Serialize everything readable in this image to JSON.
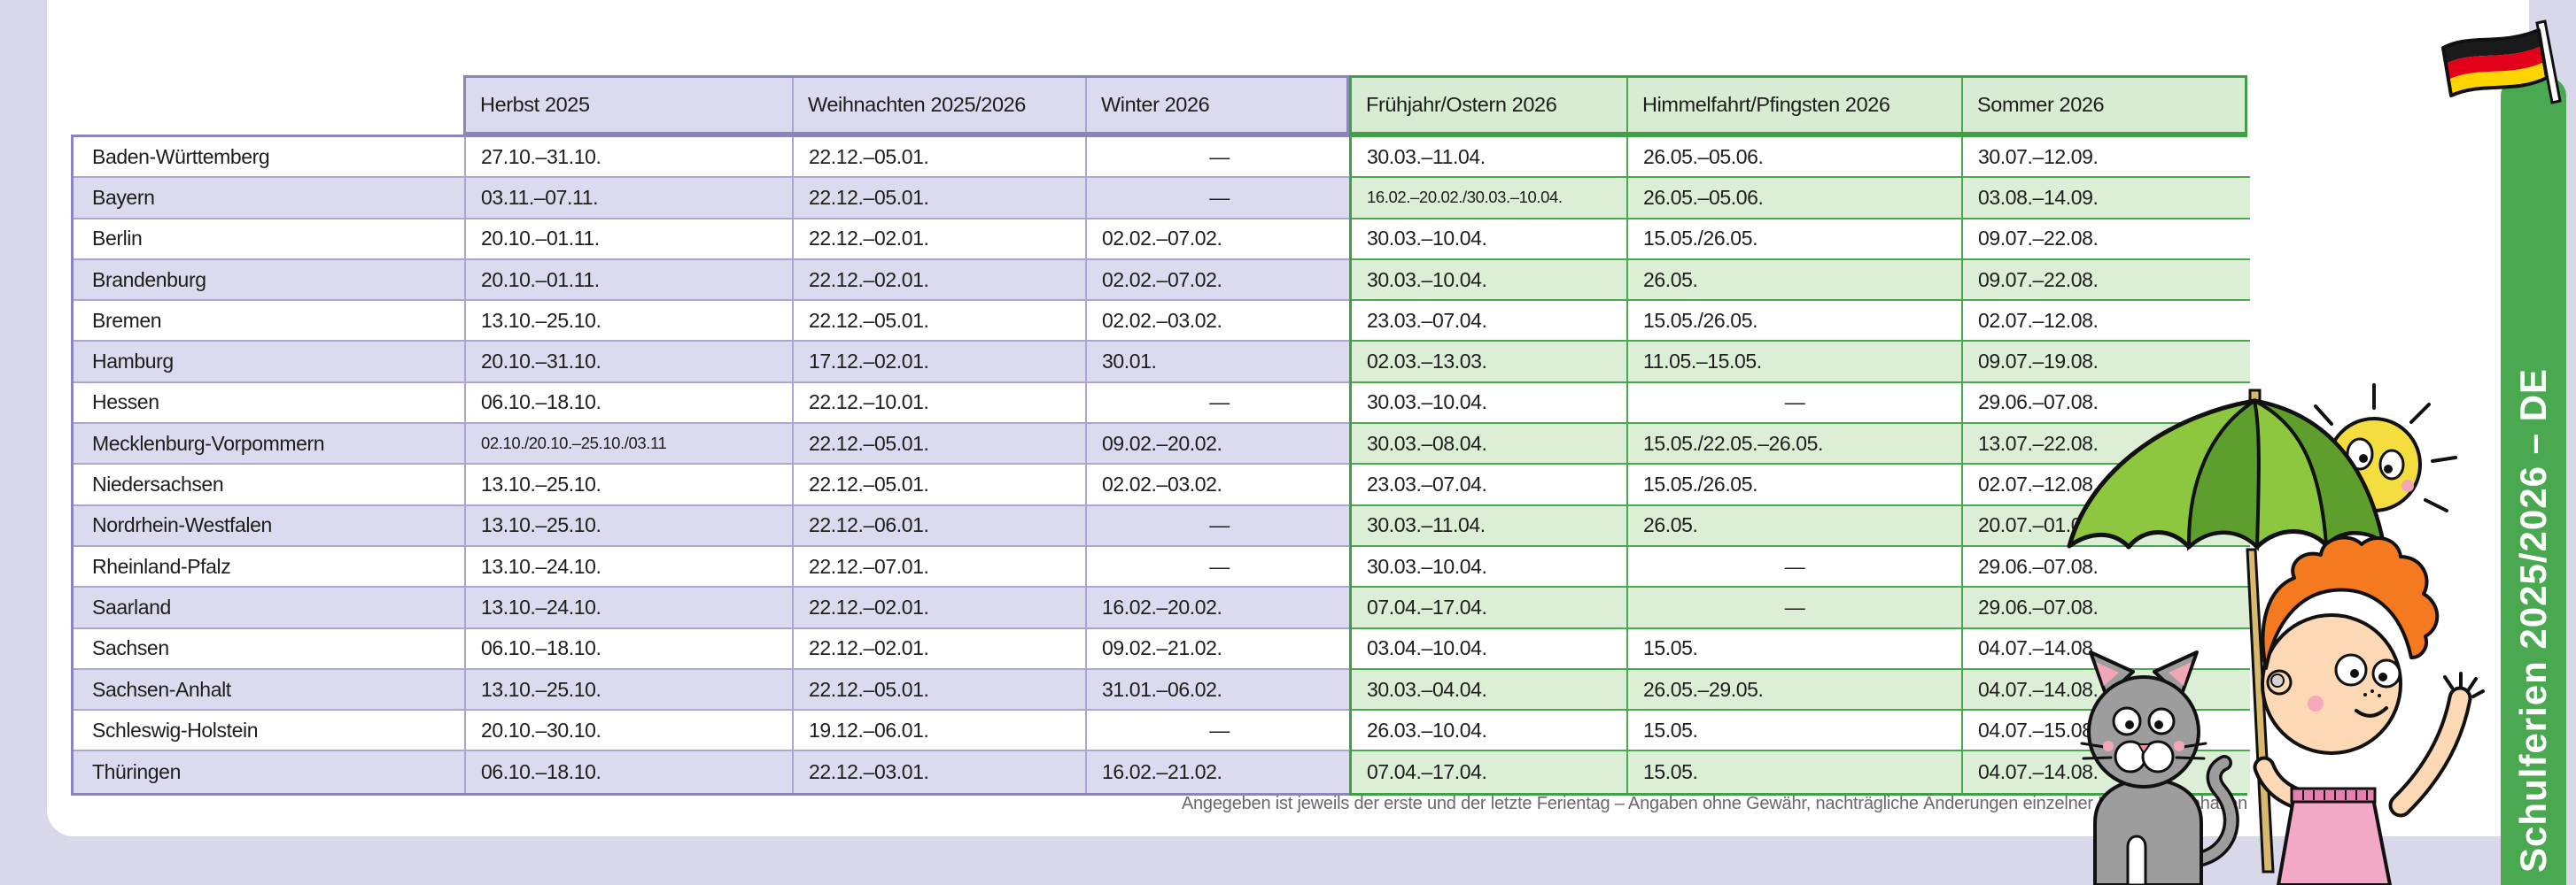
{
  "sidebar": {
    "tab_label": "Schulferien 2025/2026 – DE"
  },
  "table": {
    "columns": [
      "Herbst 2025",
      "Weihnachten 2025/2026",
      "Winter 2026",
      "Frühjahr/Ostern 2026",
      "Himmelfahrt/Pfingsten 2026",
      "Sommer 2026"
    ],
    "rows": [
      {
        "state": "Baden-Württemberg",
        "values": [
          "27.10.–31.10.",
          "22.12.–05.01.",
          "—",
          "30.03.–11.04.",
          "26.05.–05.06.",
          "30.07.–12.09."
        ]
      },
      {
        "state": "Bayern",
        "values": [
          "03.11.–07.11.",
          "22.12.–05.01.",
          "—",
          "16.02.–20.02./30.03.–10.04.",
          "26.05.–05.06.",
          "03.08.–14.09."
        ]
      },
      {
        "state": "Berlin",
        "values": [
          "20.10.–01.11.",
          "22.12.–02.01.",
          "02.02.–07.02.",
          "30.03.–10.04.",
          "15.05./26.05.",
          "09.07.–22.08."
        ]
      },
      {
        "state": "Brandenburg",
        "values": [
          "20.10.–01.11.",
          "22.12.–02.01.",
          "02.02.–07.02.",
          "30.03.–10.04.",
          "26.05.",
          "09.07.–22.08."
        ]
      },
      {
        "state": "Bremen",
        "values": [
          "13.10.–25.10.",
          "22.12.–05.01.",
          "02.02.–03.02.",
          "23.03.–07.04.",
          "15.05./26.05.",
          "02.07.–12.08."
        ]
      },
      {
        "state": "Hamburg",
        "values": [
          "20.10.–31.10.",
          "17.12.–02.01.",
          "30.01.",
          "02.03.–13.03.",
          "11.05.–15.05.",
          "09.07.–19.08."
        ]
      },
      {
        "state": "Hessen",
        "values": [
          "06.10.–18.10.",
          "22.12.–10.01.",
          "—",
          "30.03.–10.04.",
          "—",
          "29.06.–07.08."
        ]
      },
      {
        "state": "Mecklenburg-Vorpommern",
        "values": [
          "02.10./20.10.–25.10./03.11",
          "22.12.–05.01.",
          "09.02.–20.02.",
          "30.03.–08.04.",
          "15.05./22.05.–26.05.",
          "13.07.–22.08."
        ]
      },
      {
        "state": "Niedersachsen",
        "values": [
          "13.10.–25.10.",
          "22.12.–05.01.",
          "02.02.–03.02.",
          "23.03.–07.04.",
          "15.05./26.05.",
          "02.07.–12.08."
        ]
      },
      {
        "state": "Nordrhein-Westfalen",
        "values": [
          "13.10.–25.10.",
          "22.12.–06.01.",
          "—",
          "30.03.–11.04.",
          "26.05.",
          "20.07.–01.09."
        ]
      },
      {
        "state": "Rheinland-Pfalz",
        "values": [
          "13.10.–24.10.",
          "22.12.–07.01.",
          "—",
          "30.03.–10.04.",
          "—",
          "29.06.–07.08."
        ]
      },
      {
        "state": "Saarland",
        "values": [
          "13.10.–24.10.",
          "22.12.–02.01.",
          "16.02.–20.02.",
          "07.04.–17.04.",
          "—",
          "29.06.–07.08."
        ]
      },
      {
        "state": "Sachsen",
        "values": [
          "06.10.–18.10.",
          "22.12.–02.01.",
          "09.02.–21.02.",
          "03.04.–10.04.",
          "15.05.",
          "04.07.–14.08."
        ]
      },
      {
        "state": "Sachsen-Anhalt",
        "values": [
          "13.10.–25.10.",
          "22.12.–05.01.",
          "31.01.–06.02.",
          "30.03.–04.04.",
          "26.05.–29.05.",
          "04.07.–14.08."
        ]
      },
      {
        "state": "Schleswig-Holstein",
        "values": [
          "20.10.–30.10.",
          "19.12.–06.01.",
          "—",
          "26.03.–10.04.",
          "15.05.",
          "04.07.–15.08."
        ]
      },
      {
        "state": "Thüringen",
        "values": [
          "06.10.–18.10.",
          "22.12.–03.01.",
          "16.02.–21.02.",
          "07.04.–17.04.",
          "15.05.",
          "04.07.–14.08."
        ]
      }
    ]
  },
  "footer": {
    "note": "Angegeben ist jeweils der erste und der letzte Ferientag – Angaben ohne Gewähr, nachträgliche Änderungen einzelner Länder vorbehalten"
  },
  "icons": {
    "flag": "german-flag-icon",
    "illustration": [
      "sun-icon",
      "umbrella-icon",
      "girl-icon",
      "cat-icon"
    ]
  },
  "colors": {
    "background_lavender": "#d9d7ea",
    "purple_border": "#8a86bd",
    "purple_row_tint": "#dcdaee",
    "green_border": "#3fa046",
    "green_row_tint": "#dcefd6",
    "tab_green": "#4aa950",
    "flag_black": "#1a1a1a",
    "flag_red": "#e2001a",
    "flag_gold": "#ffd500"
  }
}
